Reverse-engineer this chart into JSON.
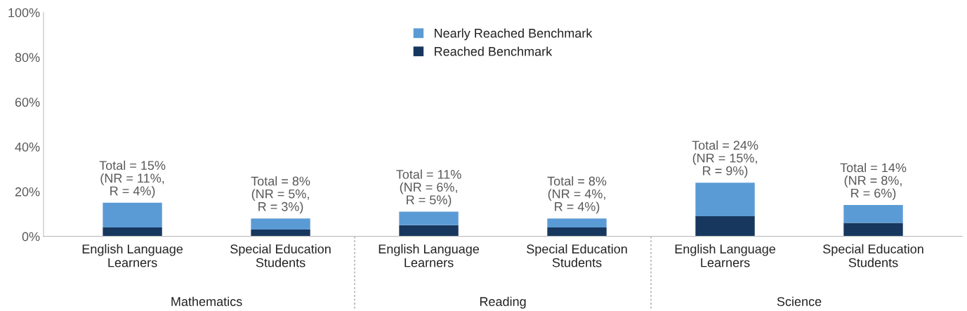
{
  "chart_data": {
    "type": "bar",
    "stacked": true,
    "categories": [
      "English Language\nLearners",
      "Special Education\nStudents",
      "English Language\nLearners",
      "Special Education\nStudents",
      "English Language\nLearners",
      "Special Education\nStudents"
    ],
    "series": [
      {
        "name": "Reached Benchmark",
        "color": "#17375e",
        "values": [
          4,
          3,
          5,
          4,
          9,
          6
        ]
      },
      {
        "name": "Nearly Reached Benchmark",
        "color": "#5b9bd5",
        "values": [
          11,
          5,
          6,
          4,
          15,
          8
        ]
      }
    ],
    "totals": [
      "Total = 15%\n(NR = 11%,\nR = 4%)",
      "Total = 8%\n(NR = 5%,\nR = 3%)",
      "Total = 11%\n(NR = 6%,\nR = 5%)",
      "Total = 8%\n(NR = 4%,\nR = 4%)",
      "Total = 24%\n(NR = 15%,\nR = 9%)",
      "Total = 14%\n(NR = 8%,\nR = 6%)"
    ],
    "annotations": [
      "Mathematics",
      "Reading",
      "Science"
    ],
    "ylim": [
      0,
      100
    ],
    "yticks": [
      {
        "value": 0,
        "label": "0%"
      },
      {
        "value": 20,
        "label": "20%"
      },
      {
        "value": 40,
        "label": "40%"
      },
      {
        "value": 60,
        "label": "60%"
      },
      {
        "value": 80,
        "label": "80%"
      },
      {
        "value": 100,
        "label": "100%"
      }
    ],
    "legend": "top",
    "grid": false
  }
}
